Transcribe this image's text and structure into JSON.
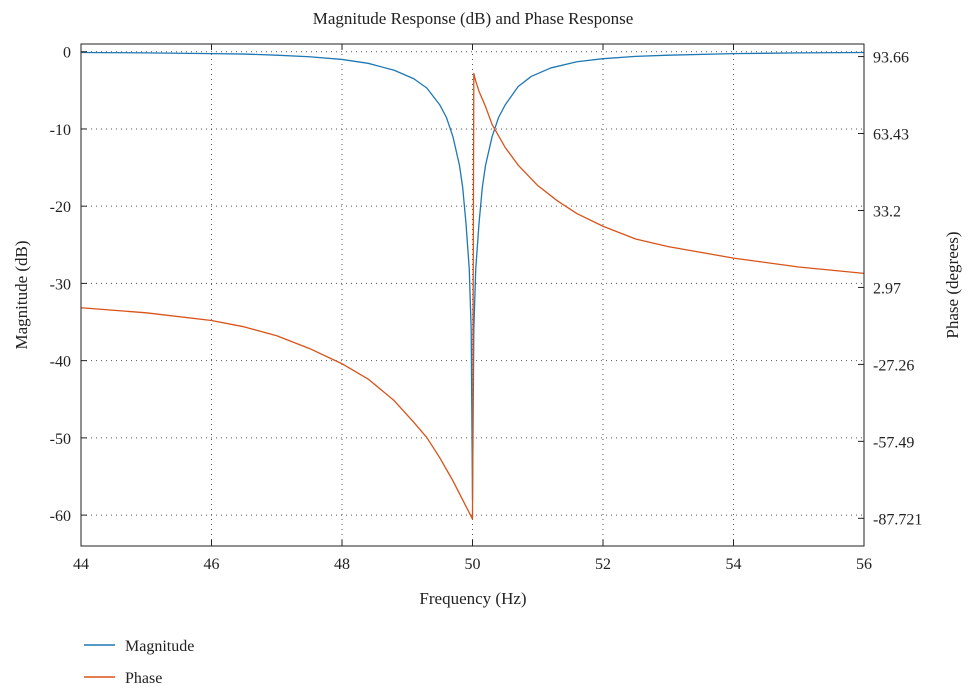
{
  "chart_data": {
    "type": "line",
    "title": "Magnitude Response (dB) and Phase Response",
    "xlabel": "Frequency (Hz)",
    "ylabel": "Magnitude (dB)",
    "y2label": "Phase (degrees)",
    "xlim": [
      44,
      56
    ],
    "ylim": [
      -64,
      1
    ],
    "y2lim": [
      -98.6,
      98.6
    ],
    "grid": true,
    "legend_position": "bottom-left",
    "x_ticks": [
      44,
      46,
      48,
      50,
      52,
      54,
      56
    ],
    "x_tick_labels": [
      "44",
      "46",
      "48",
      "50",
      "52",
      "54",
      "56"
    ],
    "y_ticks": [
      0,
      -10,
      -20,
      -30,
      -40,
      -50,
      -60
    ],
    "y_tick_labels": [
      "0",
      "-10",
      "-20",
      "-30",
      "-40",
      "-50",
      "-60"
    ],
    "y2_ticks": [
      93.66,
      63.43,
      33.2,
      2.97,
      -27.26,
      -57.49,
      -87.721
    ],
    "y2_tick_labels": [
      "93.66",
      "63.43",
      "33.2",
      "2.97",
      "-27.26",
      "-57.49",
      "-87.721"
    ],
    "series": [
      {
        "name": "Magnitude",
        "axis": "left",
        "color": "#1f77b4",
        "x": [
          44,
          45,
          46,
          46.5,
          47,
          47.5,
          48,
          48.4,
          48.8,
          49.1,
          49.3,
          49.5,
          49.6,
          49.7,
          49.8,
          49.85,
          49.9,
          49.95,
          49.98,
          50,
          50.02,
          50.05,
          50.1,
          50.15,
          50.2,
          50.3,
          50.4,
          50.5,
          50.7,
          50.9,
          51.2,
          51.6,
          52,
          52.5,
          53,
          54,
          55,
          56
        ],
        "y": [
          -0.1,
          -0.15,
          -0.25,
          -0.3,
          -0.45,
          -0.65,
          -1.0,
          -1.5,
          -2.4,
          -3.5,
          -4.7,
          -6.9,
          -8.5,
          -11.0,
          -14.7,
          -17.6,
          -22.2,
          -28.1,
          -36.0,
          -58.0,
          -36.0,
          -28.1,
          -22.2,
          -17.6,
          -14.7,
          -11.0,
          -8.5,
          -6.9,
          -4.5,
          -3.2,
          -2.1,
          -1.3,
          -0.9,
          -0.6,
          -0.45,
          -0.25,
          -0.15,
          -0.1
        ]
      },
      {
        "name": "Phase",
        "axis": "right",
        "color": "#d95319",
        "x": [
          44,
          45,
          46,
          46.5,
          47,
          47.5,
          48,
          48.4,
          48.8,
          49.1,
          49.3,
          49.5,
          49.6,
          49.7,
          49.8,
          49.9,
          49.95,
          50,
          50.02,
          50.05,
          50.1,
          50.2,
          50.3,
          50.5,
          50.7,
          51,
          51.3,
          51.6,
          52,
          52.5,
          53,
          54,
          55,
          56
        ],
        "y": [
          -5.0,
          -7.0,
          -10.0,
          -12.5,
          -16.0,
          -21.0,
          -27.0,
          -33.0,
          -41.5,
          -50.0,
          -56.0,
          -64.0,
          -68.5,
          -73.0,
          -78.0,
          -83.0,
          -85.5,
          -88.0,
          87.0,
          84.0,
          80.0,
          74.0,
          67.0,
          58.0,
          51.0,
          43.0,
          37.0,
          32.0,
          27.0,
          22.0,
          19.0,
          14.5,
          11.0,
          8.5
        ]
      }
    ]
  }
}
